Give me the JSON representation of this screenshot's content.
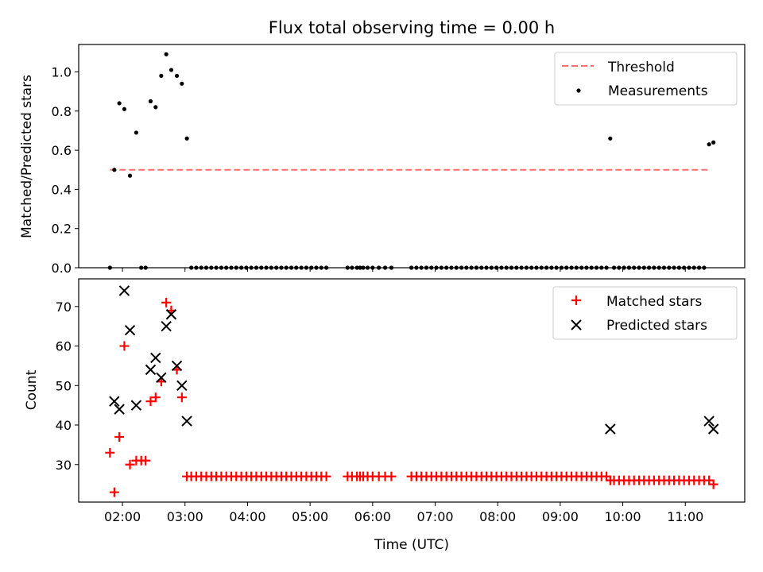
{
  "colors": {
    "threshold": "#ff7070",
    "measurements": "#000000",
    "matched": "#ff0000",
    "predicted": "#000000"
  },
  "chart_data": [
    {
      "type": "scatter",
      "title": "Flux total observing time = 0.00 h",
      "xlabel": "",
      "ylabel": "Matched/Predicted stars",
      "ylim": [
        0,
        1.14
      ],
      "xlim": [
        1.3,
        11.95
      ],
      "yticks": [
        0.0,
        0.2,
        0.4,
        0.6,
        0.8,
        1.0
      ],
      "ytick_labels": [
        "0.0",
        "0.2",
        "0.4",
        "0.6",
        "0.8",
        "1.0"
      ],
      "legend": {
        "position": "upper right",
        "entries": [
          "Threshold",
          "Measurements"
        ]
      },
      "threshold": {
        "name": "Threshold",
        "style": "dashed",
        "value": 0.5,
        "x": [
          1.8,
          11.4
        ]
      },
      "series": [
        {
          "name": "Measurements",
          "marker": "dot",
          "x": [
            1.8,
            1.87,
            1.95,
            2.03,
            2.12,
            2.22,
            2.3,
            2.37,
            2.45,
            2.53,
            2.62,
            2.7,
            2.78,
            2.87,
            2.95,
            3.03,
            3.1,
            3.18,
            3.26,
            3.34,
            3.42,
            3.5,
            3.58,
            3.66,
            3.74,
            3.82,
            3.9,
            3.98,
            4.06,
            4.14,
            4.22,
            4.3,
            4.38,
            4.46,
            4.54,
            4.62,
            4.7,
            4.78,
            4.86,
            4.94,
            5.02,
            5.1,
            5.18,
            5.26,
            5.6,
            5.67,
            5.75,
            5.8,
            5.85,
            5.92,
            6.0,
            6.1,
            6.2,
            6.3,
            6.62,
            6.7,
            6.78,
            6.86,
            6.94,
            7.02,
            7.1,
            7.18,
            7.26,
            7.34,
            7.42,
            7.5,
            7.58,
            7.66,
            7.74,
            7.82,
            7.9,
            7.98,
            8.06,
            8.14,
            8.22,
            8.3,
            8.38,
            8.46,
            8.54,
            8.62,
            8.7,
            8.78,
            8.86,
            8.94,
            9.02,
            9.1,
            9.18,
            9.26,
            9.34,
            9.42,
            9.5,
            9.58,
            9.66,
            9.74,
            9.8,
            9.86,
            9.94,
            10.02,
            10.1,
            10.18,
            10.26,
            10.34,
            10.42,
            10.5,
            10.58,
            10.66,
            10.74,
            10.82,
            10.9,
            10.98,
            11.06,
            11.14,
            11.22,
            11.3,
            11.38,
            11.45
          ],
          "y": [
            0.0,
            0.5,
            0.84,
            0.81,
            0.47,
            0.69,
            0.0,
            0.0,
            0.85,
            0.82,
            0.98,
            1.09,
            1.01,
            0.98,
            0.94,
            0.66,
            0.0,
            0.0,
            0.0,
            0.0,
            0.0,
            0.0,
            0.0,
            0.0,
            0.0,
            0.0,
            0.0,
            0.0,
            0.0,
            0.0,
            0.0,
            0.0,
            0.0,
            0.0,
            0.0,
            0.0,
            0.0,
            0.0,
            0.0,
            0.0,
            0.0,
            0.0,
            0.0,
            0.0,
            0.0,
            0.0,
            0.0,
            0.0,
            0.0,
            0.0,
            0.0,
            0.0,
            0.0,
            0.0,
            0.0,
            0.0,
            0.0,
            0.0,
            0.0,
            0.0,
            0.0,
            0.0,
            0.0,
            0.0,
            0.0,
            0.0,
            0.0,
            0.0,
            0.0,
            0.0,
            0.0,
            0.0,
            0.0,
            0.0,
            0.0,
            0.0,
            0.0,
            0.0,
            0.0,
            0.0,
            0.0,
            0.0,
            0.0,
            0.0,
            0.0,
            0.0,
            0.0,
            0.0,
            0.0,
            0.0,
            0.0,
            0.0,
            0.0,
            0.0,
            0.66,
            0.0,
            0.0,
            0.0,
            0.0,
            0.0,
            0.0,
            0.0,
            0.0,
            0.0,
            0.0,
            0.0,
            0.0,
            0.0,
            0.0,
            0.0,
            0.0,
            0.0,
            0.0,
            0.0,
            0.63,
            0.64
          ]
        }
      ]
    },
    {
      "type": "scatter",
      "title": "",
      "xlabel": "Time (UTC)",
      "ylabel": "Count",
      "ylim": [
        20.5,
        77
      ],
      "xlim": [
        1.3,
        11.95
      ],
      "yticks": [
        30,
        40,
        50,
        60,
        70
      ],
      "ytick_labels": [
        "30",
        "40",
        "50",
        "60",
        "70"
      ],
      "xticks": [
        2,
        3,
        4,
        5,
        6,
        7,
        8,
        9,
        10,
        11
      ],
      "xtick_labels": [
        "02:00",
        "03:00",
        "04:00",
        "05:00",
        "06:00",
        "07:00",
        "08:00",
        "09:00",
        "10:00",
        "11:00"
      ],
      "legend": {
        "position": "upper right",
        "entries": [
          "Matched stars",
          "Predicted stars"
        ]
      },
      "series": [
        {
          "name": "Matched stars",
          "marker": "plus",
          "x": [
            1.8,
            1.87,
            1.95,
            2.03,
            2.12,
            2.22,
            2.3,
            2.37,
            2.45,
            2.53,
            2.62,
            2.7,
            2.78,
            2.87,
            2.95,
            3.03,
            3.1,
            3.18,
            3.26,
            3.34,
            3.42,
            3.5,
            3.58,
            3.66,
            3.74,
            3.82,
            3.9,
            3.98,
            4.06,
            4.14,
            4.22,
            4.3,
            4.38,
            4.46,
            4.54,
            4.62,
            4.7,
            4.78,
            4.86,
            4.94,
            5.02,
            5.1,
            5.18,
            5.26,
            5.6,
            5.67,
            5.75,
            5.8,
            5.85,
            5.92,
            6.0,
            6.1,
            6.2,
            6.3,
            6.62,
            6.7,
            6.78,
            6.86,
            6.94,
            7.02,
            7.1,
            7.18,
            7.26,
            7.34,
            7.42,
            7.5,
            7.58,
            7.66,
            7.74,
            7.82,
            7.9,
            7.98,
            8.06,
            8.14,
            8.22,
            8.3,
            8.38,
            8.46,
            8.54,
            8.62,
            8.7,
            8.78,
            8.86,
            8.94,
            9.02,
            9.1,
            9.18,
            9.26,
            9.34,
            9.42,
            9.5,
            9.58,
            9.66,
            9.74,
            9.8,
            9.86,
            9.94,
            10.02,
            10.1,
            10.18,
            10.26,
            10.34,
            10.42,
            10.5,
            10.58,
            10.66,
            10.74,
            10.82,
            10.9,
            10.98,
            11.06,
            11.14,
            11.22,
            11.3,
            11.38,
            11.45
          ],
          "y": [
            33,
            23,
            37,
            60,
            30,
            31,
            31,
            31,
            46,
            47,
            51,
            71,
            69,
            54,
            47,
            27,
            27,
            27,
            27,
            27,
            27,
            27,
            27,
            27,
            27,
            27,
            27,
            27,
            27,
            27,
            27,
            27,
            27,
            27,
            27,
            27,
            27,
            27,
            27,
            27,
            27,
            27,
            27,
            27,
            27,
            27,
            27,
            27,
            27,
            27,
            27,
            27,
            27,
            27,
            27,
            27,
            27,
            27,
            27,
            27,
            27,
            27,
            27,
            27,
            27,
            27,
            27,
            27,
            27,
            27,
            27,
            27,
            27,
            27,
            27,
            27,
            27,
            27,
            27,
            27,
            27,
            27,
            27,
            27,
            27,
            27,
            27,
            27,
            27,
            27,
            27,
            27,
            27,
            27,
            26,
            26,
            26,
            26,
            26,
            26,
            26,
            26,
            26,
            26,
            26,
            26,
            26,
            26,
            26,
            26,
            26,
            26,
            26,
            26,
            26,
            25
          ]
        },
        {
          "name": "Predicted stars",
          "marker": "x",
          "x": [
            1.87,
            1.95,
            2.03,
            2.12,
            2.22,
            2.45,
            2.53,
            2.62,
            2.7,
            2.78,
            2.87,
            2.95,
            3.03,
            9.8,
            11.38,
            11.45
          ],
          "y": [
            46,
            44,
            74,
            64,
            45,
            54,
            57,
            52,
            65,
            68,
            55,
            50,
            41,
            39,
            41,
            39
          ]
        }
      ]
    }
  ]
}
